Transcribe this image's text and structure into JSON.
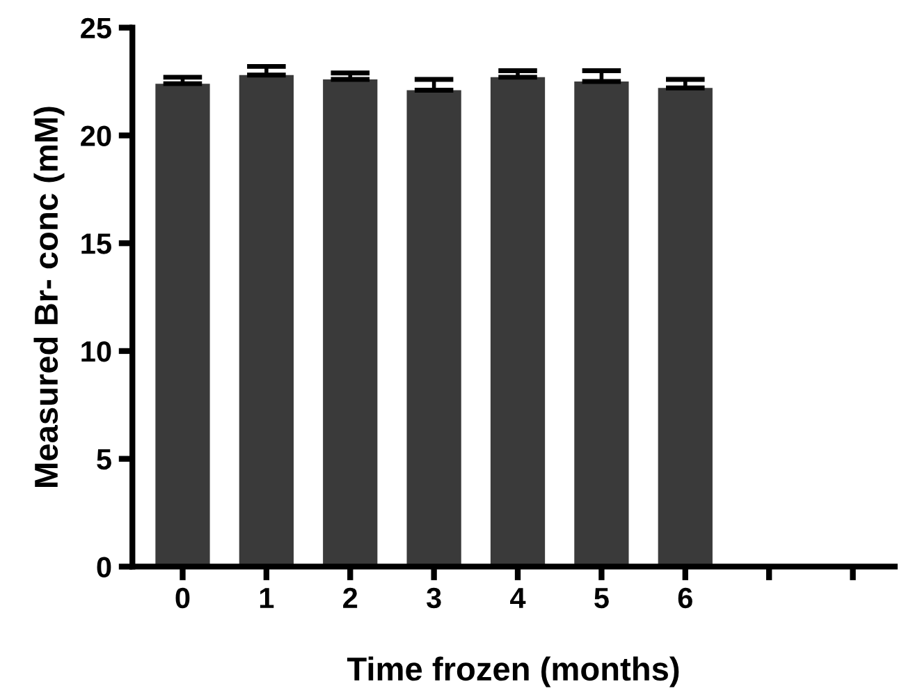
{
  "chart_data": {
    "type": "bar",
    "xlabel": "Time frozen (months)",
    "ylabel": "Measured Br- conc (mM)",
    "categories": [
      "0",
      "1",
      "2",
      "3",
      "4",
      "5",
      "6",
      null,
      null
    ],
    "values": [
      22.4,
      22.8,
      22.6,
      22.1,
      22.7,
      22.5,
      22.2,
      null,
      null
    ],
    "errors": [
      0.3,
      0.4,
      0.3,
      0.5,
      0.3,
      0.5,
      0.4,
      null,
      null
    ],
    "color": "#3a3a3a",
    "ylim": [
      0,
      25
    ],
    "yticks": [
      0,
      5,
      10,
      15,
      20,
      25
    ],
    "grid": false,
    "legend": false
  }
}
